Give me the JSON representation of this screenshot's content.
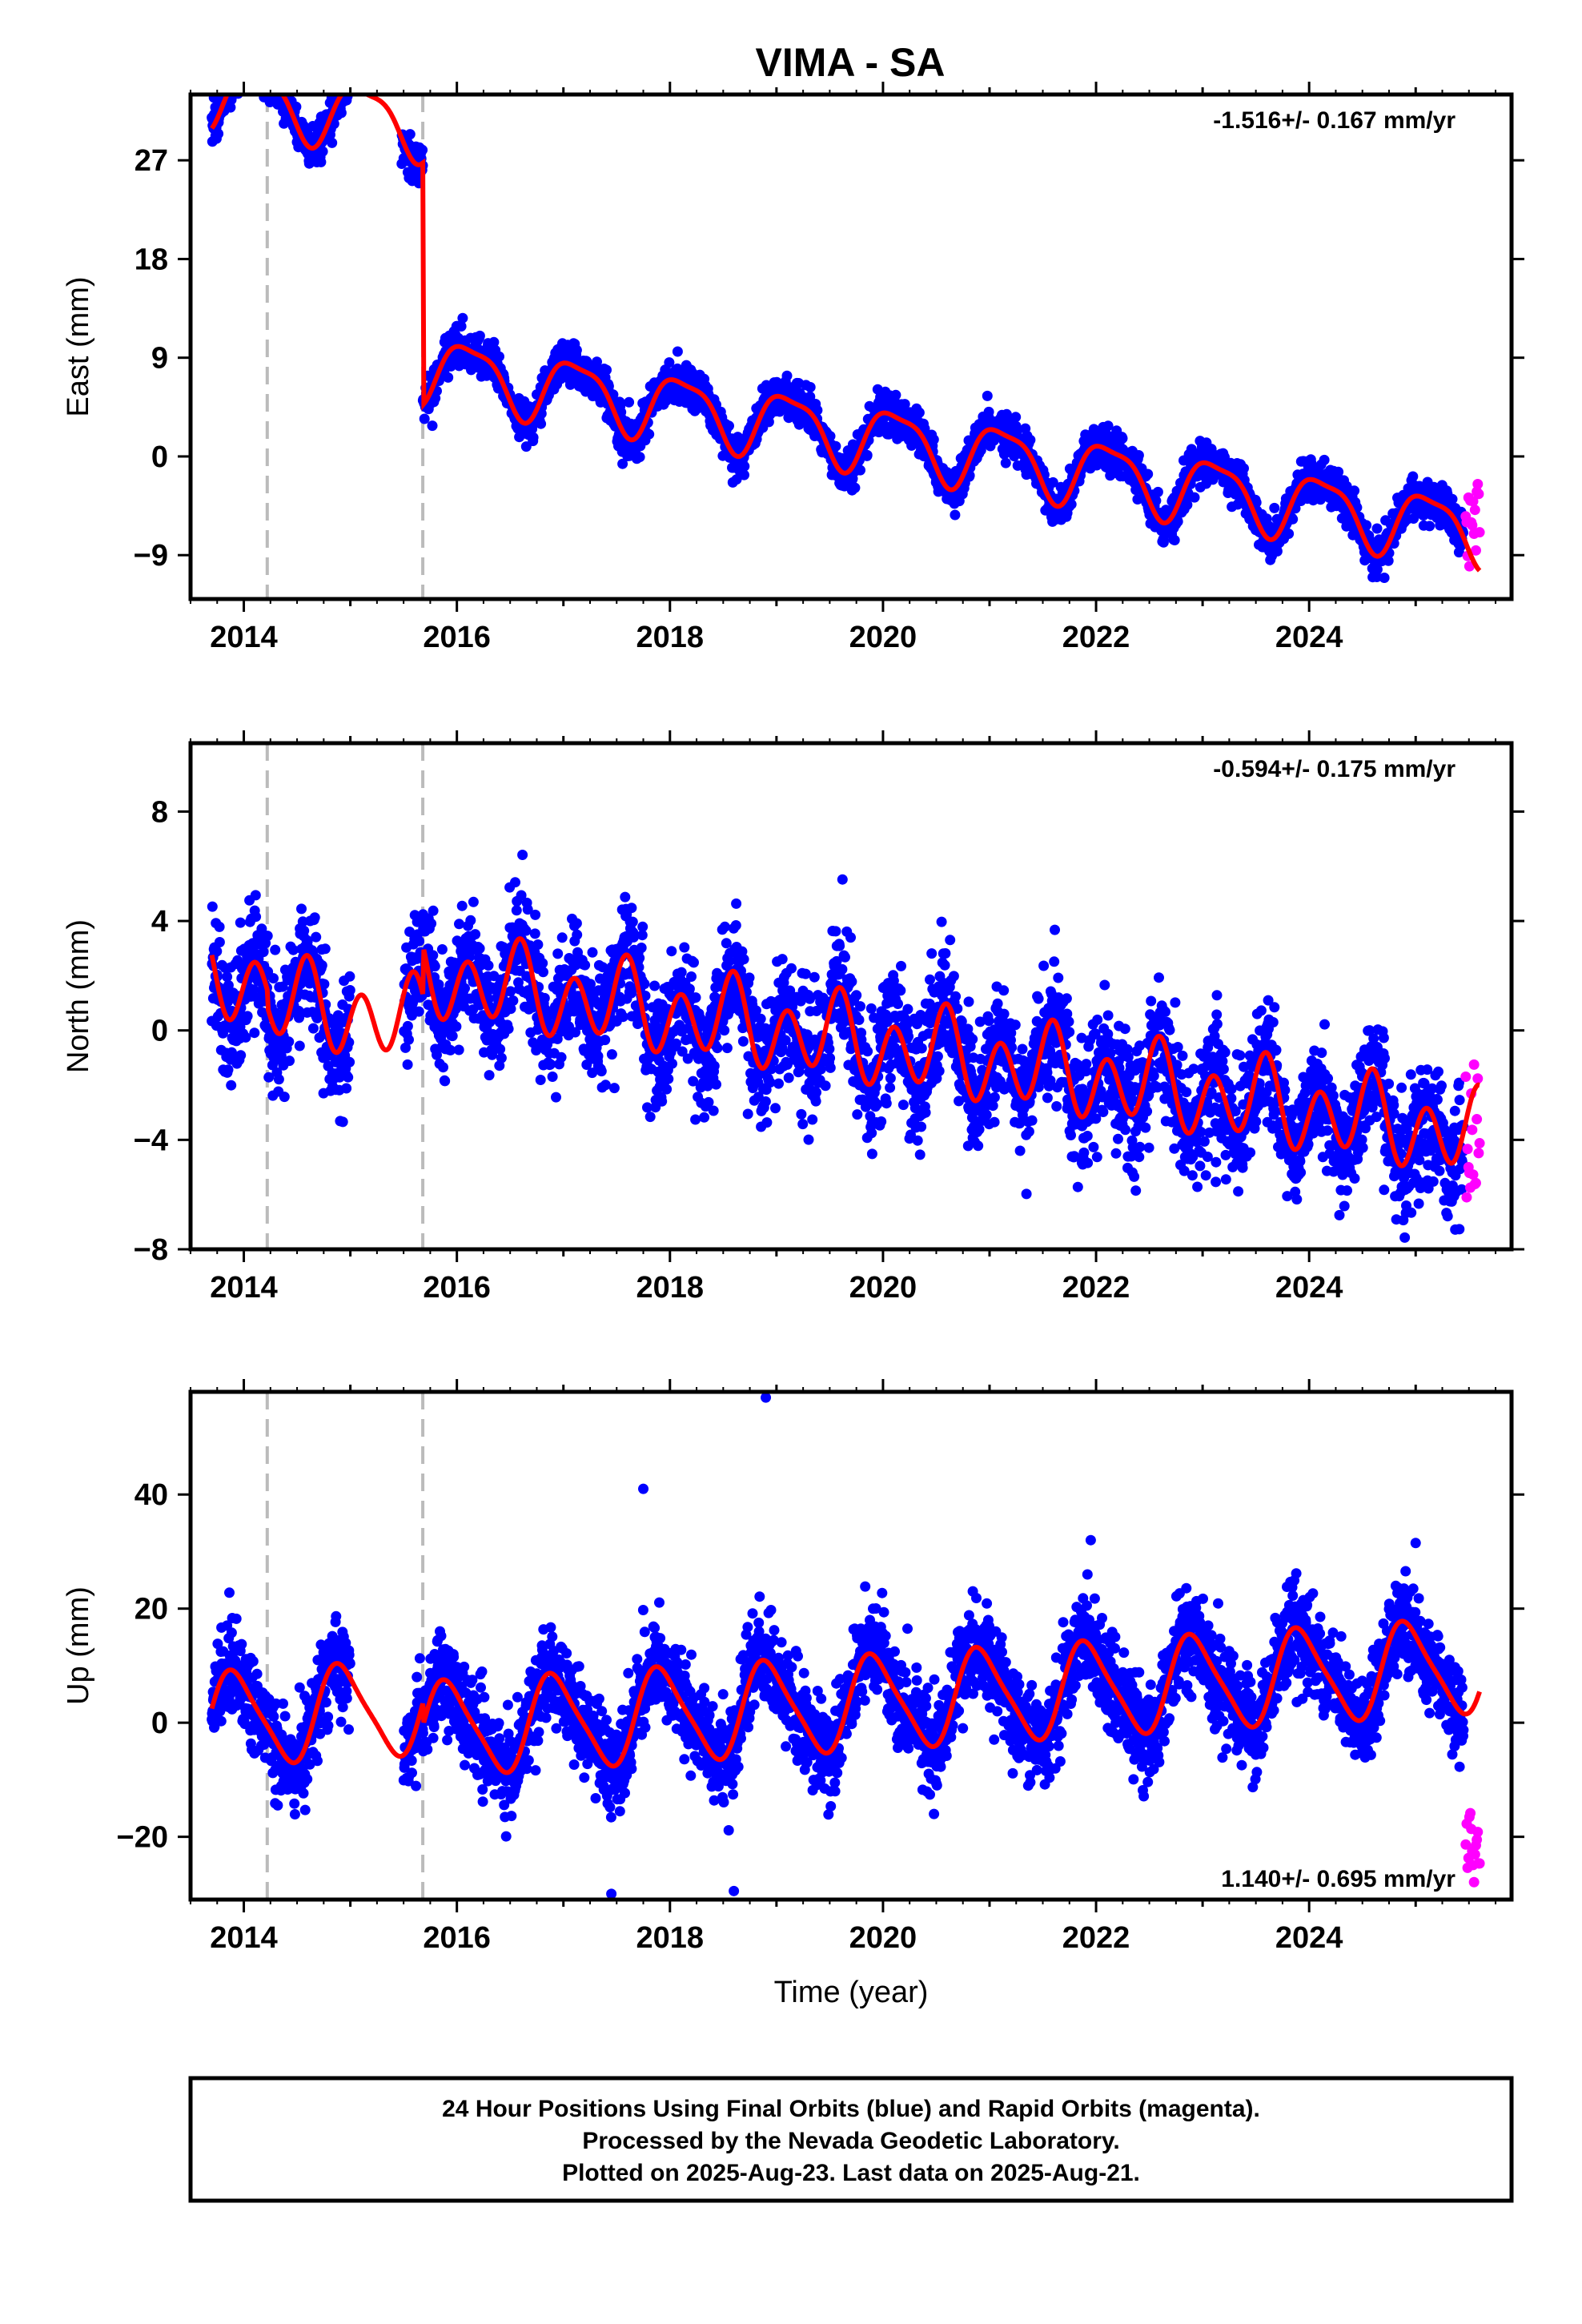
{
  "colors": {
    "final_orbits": "#0000ff",
    "rapid_orbits": "#ff00ff",
    "model_fit": "#ff0000",
    "event_line": "#bbbbbb",
    "frame": "#000000"
  },
  "chart_data": [
    {
      "type": "scatter",
      "title": "VIMA - SA",
      "component": "east",
      "ylabel": "East (mm)",
      "xlabel": "",
      "xlim": [
        2013.5,
        2025.9
      ],
      "ylim": [
        -13,
        33
      ],
      "x_ticks": [
        2014,
        2016,
        2018,
        2020,
        2022,
        2024
      ],
      "x_tick_labels": [
        "2014",
        "2016",
        "2018",
        "2020",
        "2022",
        "2024"
      ],
      "y_ticks": [
        27,
        18,
        9,
        0,
        -9
      ],
      "y_tick_labels": [
        "27",
        "18",
        "9",
        "0",
        "−9"
      ],
      "rate_label": "-1.516+/- 0.167 mm/yr",
      "rate_position": "top-right",
      "grid": false,
      "event_lines": [
        2014.22,
        2015.68
      ],
      "model": {
        "segments": [
          {
            "x_start": 2013.7,
            "x_end": 2014.22,
            "offset": 33.1,
            "rate": -1.516,
            "amp_annual": 2.9,
            "phase_annual": 0.12,
            "amp_semiannual": 0.8,
            "phase_semiannual": 0.4
          },
          {
            "x_start": 2014.22,
            "x_end": 2015.68,
            "offset": 33.2,
            "rate": -1.516,
            "amp_annual": 2.9,
            "phase_annual": 0.12,
            "amp_semiannual": 0.8,
            "phase_semiannual": 0.4
          },
          {
            "x_start": 2015.68,
            "x_end": 2025.6,
            "offset": 11.15,
            "rate": -1.516,
            "amp_annual": 2.9,
            "phase_annual": 0.12,
            "amp_semiannual": 0.8,
            "phase_semiannual": 0.4
          }
        ]
      },
      "final_orbits_series": {
        "x_start": 2013.7,
        "x_end": 2025.45,
        "scatter_sd": 0.9,
        "gaps": [
          [
            2014.98,
            2015.48
          ]
        ]
      },
      "rapid_orbits_series": {
        "x_start": 2025.47,
        "x_end": 2025.6,
        "min": -10.5,
        "max": -2.5
      }
    },
    {
      "type": "scatter",
      "component": "north",
      "ylabel": "North (mm)",
      "xlabel": "",
      "xlim": [
        2013.5,
        2025.9
      ],
      "ylim": [
        -8,
        10.5
      ],
      "x_ticks": [
        2014,
        2016,
        2018,
        2020,
        2022,
        2024
      ],
      "x_tick_labels": [
        "2014",
        "2016",
        "2018",
        "2020",
        "2022",
        "2024"
      ],
      "y_ticks": [
        8,
        4,
        0,
        -4,
        -8
      ],
      "y_tick_labels": [
        "8",
        "4",
        "0",
        "−4",
        "−8"
      ],
      "rate_label": "-0.594+/- 0.175 mm/yr",
      "rate_position": "top-right",
      "grid": false,
      "event_lines": [
        2014.22,
        2015.68
      ],
      "model": {
        "segments": [
          {
            "x_start": 2013.7,
            "x_end": 2014.22,
            "offset": 2.0,
            "rate": -0.594,
            "amp_annual": 0.6,
            "phase_annual": 0.55,
            "amp_semiannual": 1.3,
            "phase_semiannual": 0.1
          },
          {
            "x_start": 2014.22,
            "x_end": 2015.68,
            "offset": 1.4,
            "rate": -0.594,
            "amp_annual": 0.6,
            "phase_annual": 0.55,
            "amp_semiannual": 1.3,
            "phase_semiannual": 0.1
          },
          {
            "x_start": 2015.68,
            "x_end": 2025.6,
            "offset": 3.2,
            "rate": -0.594,
            "amp_annual": 0.6,
            "phase_annual": 0.55,
            "amp_semiannual": 1.3,
            "phase_semiannual": 0.1
          }
        ]
      },
      "final_orbits_series": {
        "x_start": 2013.7,
        "x_end": 2025.45,
        "scatter_sd": 1.1,
        "gaps": [
          [
            2015.0,
            2015.5
          ]
        ]
      },
      "rapid_orbits_series": {
        "x_start": 2025.47,
        "x_end": 2025.6,
        "min": -6.1,
        "max": -1.0
      }
    },
    {
      "type": "scatter",
      "component": "up",
      "ylabel": "Up (mm)",
      "xlabel": "Time (year)",
      "xlim": [
        2013.5,
        2025.9
      ],
      "ylim": [
        -31,
        58
      ],
      "x_ticks": [
        2014,
        2016,
        2018,
        2020,
        2022,
        2024
      ],
      "x_tick_labels": [
        "2014",
        "2016",
        "2018",
        "2020",
        "2022",
        "2024"
      ],
      "y_ticks": [
        40,
        20,
        0,
        -20
      ],
      "y_tick_labels": [
        "40",
        "20",
        "0",
        "−20"
      ],
      "rate_label": "1.140+/- 0.695 mm/yr",
      "rate_position": "bottom-right",
      "grid": false,
      "event_lines": [
        2014.22,
        2015.68
      ],
      "model": {
        "segments": [
          {
            "x_start": 2013.7,
            "x_end": 2014.22,
            "offset": 0.5,
            "rate": 1.14,
            "amp_annual": 8.0,
            "phase_annual": 0.92,
            "amp_semiannual": 1.5,
            "phase_semiannual": 0.3
          },
          {
            "x_start": 2014.22,
            "x_end": 2015.68,
            "offset": 0.5,
            "rate": 1.14,
            "amp_annual": 8.0,
            "phase_annual": 0.92,
            "amp_semiannual": 1.5,
            "phase_semiannual": 0.3
          },
          {
            "x_start": 2015.68,
            "x_end": 2025.6,
            "offset": -3.5,
            "rate": 1.14,
            "amp_annual": 8.0,
            "phase_annual": 0.92,
            "amp_semiannual": 1.5,
            "phase_semiannual": 0.3
          }
        ]
      },
      "final_orbits_series": {
        "x_start": 2013.7,
        "x_end": 2025.45,
        "scatter_sd": 4.2,
        "gaps": [
          [
            2015.0,
            2015.5
          ]
        ]
      },
      "rapid_orbits_series": {
        "x_start": 2025.47,
        "x_end": 2025.6,
        "min": -28,
        "max": -15
      },
      "outliers": [
        {
          "x": 2017.75,
          "y": 41
        },
        {
          "x": 2018.9,
          "y": 57
        },
        {
          "x": 2021.95,
          "y": 32
        },
        {
          "x": 2025.0,
          "y": 31.5
        },
        {
          "x": 2017.45,
          "y": -30
        },
        {
          "x": 2018.6,
          "y": -29.5
        }
      ]
    }
  ],
  "footer": {
    "line1": "24 Hour Positions Using Final Orbits (blue) and Rapid Orbits (magenta).",
    "line2": "Processed by the Nevada Geodetic Laboratory.",
    "line3": "Plotted on 2025-Aug-23. Last data on 2025-Aug-21."
  }
}
